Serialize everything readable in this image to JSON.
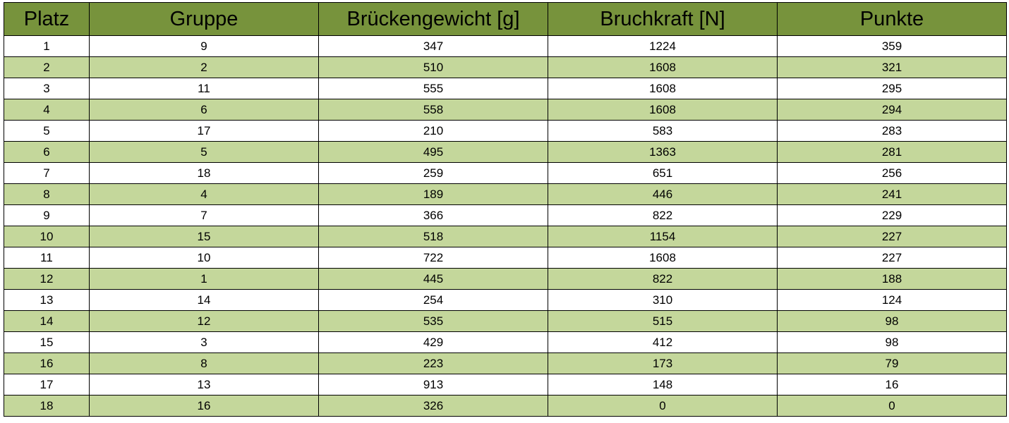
{
  "headers": [
    "Platz",
    "Gruppe",
    "Brückengewicht [g]",
    "Bruchkraft [N]",
    "Punkte"
  ],
  "rows": [
    [
      "1",
      "9",
      "347",
      "1224",
      "359"
    ],
    [
      "2",
      "2",
      "510",
      "1608",
      "321"
    ],
    [
      "3",
      "11",
      "555",
      "1608",
      "295"
    ],
    [
      "4",
      "6",
      "558",
      "1608",
      "294"
    ],
    [
      "5",
      "17",
      "210",
      "583",
      "283"
    ],
    [
      "6",
      "5",
      "495",
      "1363",
      "281"
    ],
    [
      "7",
      "18",
      "259",
      "651",
      "256"
    ],
    [
      "8",
      "4",
      "189",
      "446",
      "241"
    ],
    [
      "9",
      "7",
      "366",
      "822",
      "229"
    ],
    [
      "10",
      "15",
      "518",
      "1154",
      "227"
    ],
    [
      "11",
      "10",
      "722",
      "1608",
      "227"
    ],
    [
      "12",
      "1",
      "445",
      "822",
      "188"
    ],
    [
      "13",
      "14",
      "254",
      "310",
      "124"
    ],
    [
      "14",
      "12",
      "535",
      "515",
      "98"
    ],
    [
      "15",
      "3",
      "429",
      "412",
      "98"
    ],
    [
      "16",
      "8",
      "223",
      "173",
      "79"
    ],
    [
      "17",
      "13",
      "913",
      "148",
      "16"
    ],
    [
      "18",
      "16",
      "326",
      "0",
      "0"
    ]
  ],
  "colors": {
    "header_background": "#77933c",
    "row_band": "#c4d79b",
    "row_plain": "#ffffff",
    "border": "#000000"
  }
}
